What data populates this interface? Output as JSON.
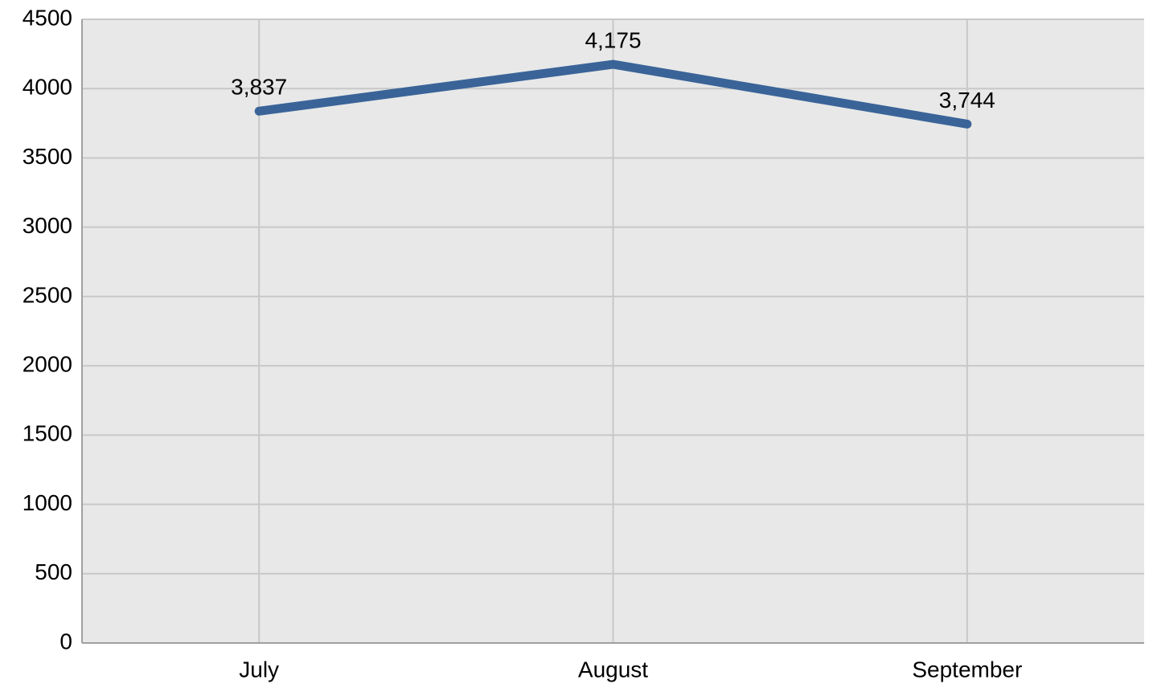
{
  "chart_data": {
    "type": "line",
    "categories": [
      "July",
      "August",
      "September"
    ],
    "values": [
      3837,
      4175,
      3744
    ],
    "value_labels": [
      "3,837",
      "4,175",
      "3,744"
    ],
    "color": "#3a6498",
    "ylim": [
      0,
      4500
    ],
    "yticks": [
      0,
      500,
      1000,
      1500,
      2000,
      2500,
      3000,
      3500,
      4000,
      4500
    ],
    "grid": true
  }
}
